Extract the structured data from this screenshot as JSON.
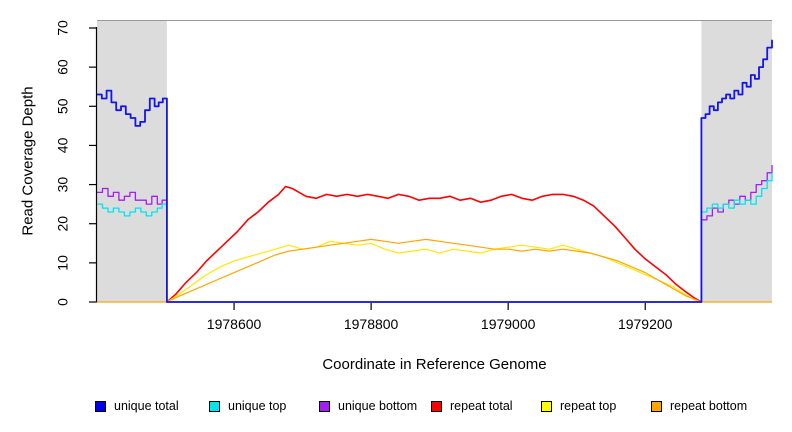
{
  "chart_data": {
    "type": "line",
    "title": "",
    "xlabel": "Coordinate in Reference Genome",
    "ylabel": "Read Coverage Depth",
    "xlim": [
      1978400,
      1979385
    ],
    "ylim": [
      0,
      70
    ],
    "x_ticks": [
      1978600,
      1978800,
      1979000,
      1979200
    ],
    "y_ticks": [
      0,
      10,
      20,
      30,
      40,
      50,
      60,
      70
    ],
    "grid": false,
    "legend_position": "bottom",
    "background_regions": [
      {
        "x_start": 1978400,
        "x_end": 1978502,
        "fill": "#DCDCDC"
      },
      {
        "x_start": 1979282,
        "x_end": 1979385,
        "fill": "#DCDCDC"
      }
    ],
    "series": [
      {
        "name": "repeat total",
        "color": "#FF0000",
        "width": 1.6,
        "step": false,
        "points": [
          [
            1978502,
            0
          ],
          [
            1978515,
            2
          ],
          [
            1978530,
            5
          ],
          [
            1978545,
            7.5
          ],
          [
            1978560,
            10.5
          ],
          [
            1978575,
            13
          ],
          [
            1978590,
            15.5
          ],
          [
            1978605,
            18
          ],
          [
            1978620,
            21
          ],
          [
            1978635,
            23
          ],
          [
            1978650,
            25.5
          ],
          [
            1978665,
            27.5
          ],
          [
            1978675,
            29.5
          ],
          [
            1978685,
            29
          ],
          [
            1978695,
            28
          ],
          [
            1978705,
            27
          ],
          [
            1978720,
            26.5
          ],
          [
            1978735,
            27.5
          ],
          [
            1978750,
            27
          ],
          [
            1978765,
            27.5
          ],
          [
            1978780,
            27
          ],
          [
            1978795,
            27.5
          ],
          [
            1978810,
            27
          ],
          [
            1978825,
            26.5
          ],
          [
            1978840,
            27.5
          ],
          [
            1978855,
            27
          ],
          [
            1978870,
            26
          ],
          [
            1978885,
            26.5
          ],
          [
            1978900,
            26.5
          ],
          [
            1978915,
            27
          ],
          [
            1978930,
            26
          ],
          [
            1978945,
            26.5
          ],
          [
            1978960,
            25.5
          ],
          [
            1978975,
            26
          ],
          [
            1978990,
            27
          ],
          [
            1979005,
            27.5
          ],
          [
            1979020,
            26.5
          ],
          [
            1979035,
            26
          ],
          [
            1979050,
            27
          ],
          [
            1979065,
            27.5
          ],
          [
            1979080,
            27.5
          ],
          [
            1979095,
            27
          ],
          [
            1979110,
            26
          ],
          [
            1979125,
            24.5
          ],
          [
            1979140,
            22
          ],
          [
            1979155,
            19.5
          ],
          [
            1979170,
            16.5
          ],
          [
            1979185,
            13.5
          ],
          [
            1979200,
            11
          ],
          [
            1979215,
            9
          ],
          [
            1979230,
            7
          ],
          [
            1979245,
            4.5
          ],
          [
            1979260,
            2.5
          ],
          [
            1979272,
            1
          ],
          [
            1979282,
            0
          ]
        ]
      },
      {
        "name": "repeat top",
        "color": "#FFE800",
        "width": 1.2,
        "step": false,
        "points": [
          [
            1978502,
            0
          ],
          [
            1978520,
            2
          ],
          [
            1978540,
            4.5
          ],
          [
            1978560,
            7
          ],
          [
            1978580,
            9
          ],
          [
            1978600,
            10.5
          ],
          [
            1978620,
            11.5
          ],
          [
            1978640,
            12.5
          ],
          [
            1978660,
            13.5
          ],
          [
            1978680,
            14.5
          ],
          [
            1978700,
            13.5
          ],
          [
            1978720,
            14
          ],
          [
            1978740,
            15.5
          ],
          [
            1978760,
            15
          ],
          [
            1978780,
            14.5
          ],
          [
            1978800,
            15
          ],
          [
            1978820,
            13.5
          ],
          [
            1978840,
            12.5
          ],
          [
            1978860,
            13
          ],
          [
            1978880,
            13.5
          ],
          [
            1978900,
            12.5
          ],
          [
            1978920,
            13.5
          ],
          [
            1978940,
            13
          ],
          [
            1978960,
            12.5
          ],
          [
            1978980,
            13.5
          ],
          [
            1979000,
            14
          ],
          [
            1979020,
            14.5
          ],
          [
            1979040,
            14
          ],
          [
            1979060,
            13.5
          ],
          [
            1979080,
            14.5
          ],
          [
            1979100,
            13.5
          ],
          [
            1979120,
            12.5
          ],
          [
            1979140,
            11.5
          ],
          [
            1979160,
            10
          ],
          [
            1979180,
            8.5
          ],
          [
            1979200,
            7
          ],
          [
            1979220,
            5.5
          ],
          [
            1979240,
            4
          ],
          [
            1979258,
            2
          ],
          [
            1979272,
            0.5
          ],
          [
            1979282,
            0
          ]
        ]
      },
      {
        "name": "repeat bottom",
        "color": "#FFA500",
        "width": 1.2,
        "step": false,
        "points": [
          [
            1978400,
            0
          ],
          [
            1978502,
            0
          ],
          [
            1978520,
            1.5
          ],
          [
            1978540,
            3
          ],
          [
            1978560,
            4.5
          ],
          [
            1978580,
            6
          ],
          [
            1978600,
            7.5
          ],
          [
            1978620,
            9
          ],
          [
            1978640,
            10.5
          ],
          [
            1978660,
            12
          ],
          [
            1978680,
            13
          ],
          [
            1978700,
            13.5
          ],
          [
            1978720,
            14
          ],
          [
            1978740,
            14.5
          ],
          [
            1978760,
            15
          ],
          [
            1978780,
            15.5
          ],
          [
            1978800,
            16
          ],
          [
            1978820,
            15.5
          ],
          [
            1978840,
            15
          ],
          [
            1978860,
            15.5
          ],
          [
            1978880,
            16
          ],
          [
            1978900,
            15.5
          ],
          [
            1978920,
            15
          ],
          [
            1978940,
            14.5
          ],
          [
            1978960,
            14
          ],
          [
            1978980,
            13.5
          ],
          [
            1979000,
            13.5
          ],
          [
            1979020,
            13
          ],
          [
            1979040,
            13.5
          ],
          [
            1979060,
            13
          ],
          [
            1979080,
            13.5
          ],
          [
            1979100,
            13
          ],
          [
            1979120,
            12.5
          ],
          [
            1979140,
            11.5
          ],
          [
            1979160,
            10.5
          ],
          [
            1979180,
            9
          ],
          [
            1979200,
            7.5
          ],
          [
            1979220,
            5.5
          ],
          [
            1979240,
            3.5
          ],
          [
            1979260,
            1.5
          ],
          [
            1979275,
            0.5
          ],
          [
            1979282,
            0
          ],
          [
            1979385,
            0
          ]
        ]
      },
      {
        "name": "unique bottom",
        "color": "#A020F0",
        "width": 1.3,
        "step": true,
        "points": [
          [
            1978400,
            28
          ],
          [
            1978408,
            29
          ],
          [
            1978416,
            27
          ],
          [
            1978424,
            28
          ],
          [
            1978432,
            26
          ],
          [
            1978440,
            27
          ],
          [
            1978448,
            28
          ],
          [
            1978456,
            26
          ],
          [
            1978464,
            26
          ],
          [
            1978472,
            25
          ],
          [
            1978480,
            27
          ],
          [
            1978488,
            25
          ],
          [
            1978495,
            26
          ],
          [
            1978502,
            25
          ],
          [
            1978502,
            0
          ],
          [
            1979282,
            0
          ],
          [
            1979282,
            21
          ],
          [
            1979290,
            22
          ],
          [
            1979298,
            24
          ],
          [
            1979306,
            23
          ],
          [
            1979314,
            25
          ],
          [
            1979322,
            26
          ],
          [
            1979330,
            25
          ],
          [
            1979338,
            27
          ],
          [
            1979346,
            26
          ],
          [
            1979354,
            28
          ],
          [
            1979362,
            30
          ],
          [
            1979370,
            31
          ],
          [
            1979378,
            33
          ],
          [
            1979385,
            35
          ]
        ]
      },
      {
        "name": "unique top",
        "color": "#00E5EE",
        "width": 1.3,
        "step": true,
        "points": [
          [
            1978400,
            25
          ],
          [
            1978408,
            24
          ],
          [
            1978416,
            23
          ],
          [
            1978424,
            24
          ],
          [
            1978432,
            23
          ],
          [
            1978440,
            22
          ],
          [
            1978448,
            23
          ],
          [
            1978456,
            24
          ],
          [
            1978464,
            23
          ],
          [
            1978472,
            22
          ],
          [
            1978480,
            23
          ],
          [
            1978488,
            24
          ],
          [
            1978495,
            25
          ],
          [
            1978502,
            25
          ],
          [
            1978502,
            0
          ],
          [
            1979282,
            0
          ],
          [
            1979282,
            23
          ],
          [
            1979290,
            24
          ],
          [
            1979298,
            25
          ],
          [
            1979306,
            24
          ],
          [
            1979314,
            25
          ],
          [
            1979322,
            24
          ],
          [
            1979330,
            26
          ],
          [
            1979338,
            25
          ],
          [
            1979346,
            26
          ],
          [
            1979354,
            25
          ],
          [
            1979362,
            27
          ],
          [
            1979370,
            29
          ],
          [
            1979378,
            31
          ],
          [
            1979385,
            33
          ]
        ]
      },
      {
        "name": "unique total",
        "color": "#1414EE",
        "width": 1.8,
        "step": true,
        "points": [
          [
            1978400,
            53
          ],
          [
            1978407,
            52
          ],
          [
            1978414,
            54
          ],
          [
            1978421,
            51
          ],
          [
            1978428,
            49
          ],
          [
            1978435,
            50
          ],
          [
            1978442,
            48
          ],
          [
            1978449,
            47
          ],
          [
            1978456,
            45
          ],
          [
            1978463,
            46
          ],
          [
            1978470,
            49
          ],
          [
            1978477,
            52
          ],
          [
            1978484,
            50
          ],
          [
            1978490,
            51
          ],
          [
            1978496,
            52
          ],
          [
            1978502,
            50
          ],
          [
            1978502,
            0
          ],
          [
            1979282,
            0
          ],
          [
            1979282,
            47
          ],
          [
            1979288,
            48
          ],
          [
            1979294,
            50
          ],
          [
            1979300,
            49
          ],
          [
            1979306,
            51
          ],
          [
            1979312,
            52
          ],
          [
            1979318,
            53
          ],
          [
            1979324,
            52
          ],
          [
            1979330,
            54
          ],
          [
            1979336,
            53
          ],
          [
            1979342,
            56
          ],
          [
            1979348,
            55
          ],
          [
            1979354,
            58
          ],
          [
            1979360,
            57
          ],
          [
            1979366,
            60
          ],
          [
            1979372,
            62
          ],
          [
            1979378,
            65
          ],
          [
            1979385,
            67
          ]
        ]
      }
    ]
  },
  "legend": {
    "items": [
      {
        "label": "unique total",
        "color": "#0000EE"
      },
      {
        "label": "unique top",
        "color": "#00E5EE"
      },
      {
        "label": "unique bottom",
        "color": "#A020F0"
      },
      {
        "label": "repeat total",
        "color": "#FF0000"
      },
      {
        "label": "repeat top",
        "color": "#FFFF00"
      },
      {
        "label": "repeat bottom",
        "color": "#FFA500"
      }
    ]
  },
  "colors": {
    "plot_background": "#FFFFFF",
    "masked_region": "#DCDCDC",
    "axis": "#000000",
    "top_border": "#999999"
  }
}
